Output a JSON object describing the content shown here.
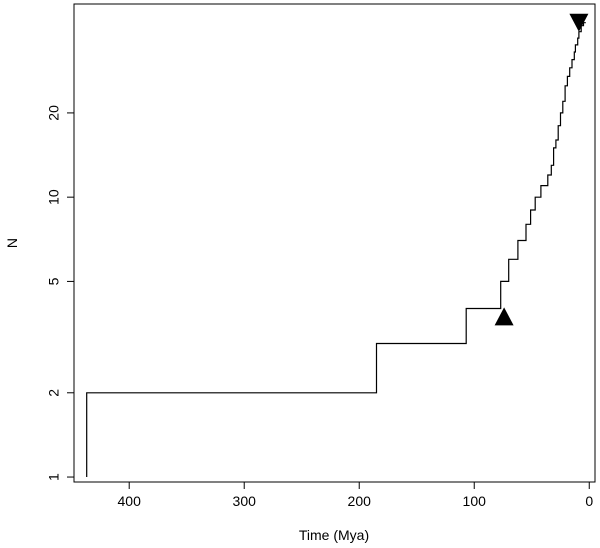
{
  "chart_data": {
    "type": "line",
    "step": true,
    "xlabel": "Time (Mya)",
    "ylabel": "N",
    "xlim": [
      448,
      -5
    ],
    "ylim": [
      0.96,
      49
    ],
    "yscale": "log",
    "grid": false,
    "xticks": [
      {
        "value": 400,
        "label": "400"
      },
      {
        "value": 300,
        "label": "300"
      },
      {
        "value": 200,
        "label": "200"
      },
      {
        "value": 100,
        "label": "100"
      },
      {
        "value": 0,
        "label": "0"
      }
    ],
    "yticks": [
      {
        "value": 1,
        "label": "1"
      },
      {
        "value": 2,
        "label": "2"
      },
      {
        "value": 5,
        "label": "5"
      },
      {
        "value": 10,
        "label": "10"
      },
      {
        "value": 20,
        "label": "20"
      }
    ],
    "series": [
      {
        "x": [
          437,
          437,
          185,
          185,
          107,
          107,
          77,
          77,
          70,
          70,
          62,
          62,
          55,
          55,
          51,
          51,
          47,
          47,
          42,
          42,
          36,
          36,
          33,
          33,
          31,
          31,
          29,
          29,
          27,
          27,
          25,
          25,
          23,
          23,
          21,
          21,
          19,
          19,
          17,
          17,
          15,
          15,
          13,
          13,
          12,
          12,
          10,
          10,
          9,
          9,
          7,
          7,
          5,
          5,
          3
        ],
        "y": [
          1,
          2,
          2,
          3,
          3,
          4,
          4,
          5,
          5,
          6,
          6,
          7,
          7,
          8,
          8,
          9,
          9,
          10,
          10,
          11,
          11,
          12,
          12,
          13,
          13,
          15,
          15,
          16,
          16,
          18,
          18,
          20,
          20,
          22,
          22,
          25,
          25,
          27,
          27,
          29,
          29,
          31,
          31,
          33,
          33,
          35,
          35,
          37,
          37,
          39,
          39,
          41,
          41,
          42,
          42
        ]
      }
    ],
    "markers": [
      {
        "shape": "triangle-down",
        "x": 9,
        "y": 42
      },
      {
        "shape": "triangle-up",
        "x": 74,
        "y": 3.75
      }
    ]
  }
}
